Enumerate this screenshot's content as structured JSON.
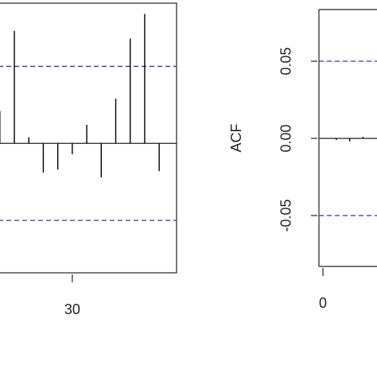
{
  "chart_data": [
    {
      "type": "acf",
      "x": [
        25,
        26,
        27,
        28,
        29,
        30,
        31,
        32,
        33,
        34,
        35,
        36
      ],
      "values": [
        0.021,
        0.073,
        0.004,
        -0.019,
        -0.017,
        -0.007,
        0.012,
        -0.022,
        0.029,
        0.068,
        0.084,
        -0.018
      ],
      "color": "#000000",
      "ci": 0.05,
      "ci_color": "#3333aa",
      "xlim": [
        24.9,
        37.2
      ],
      "xticks": [
        30
      ],
      "ylim": [
        -0.084,
        0.091
      ]
    },
    {
      "type": "acf",
      "ylabel": "ACF",
      "x": [
        1,
        2,
        3
      ],
      "values": [
        -0.001,
        -0.002,
        0.001
      ],
      "color": "#000000",
      "ci": 0.05,
      "ci_color": "#3333aa",
      "xlim": [
        -0.3,
        4.4
      ],
      "xticks": [
        0
      ],
      "ylim": [
        -0.083,
        0.0835
      ],
      "yticks": [
        {
          "value": 0.05,
          "label": "0.05"
        },
        {
          "value": 0,
          "label": "0.00"
        },
        {
          "value": -0.05,
          "label": "-0.05"
        }
      ]
    }
  ]
}
